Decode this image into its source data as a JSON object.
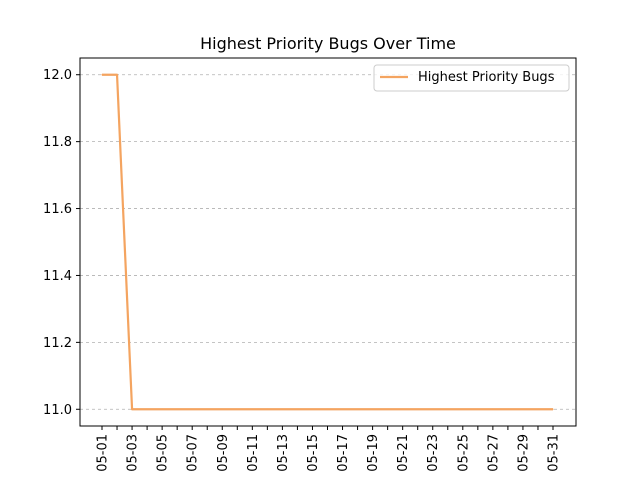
{
  "chart_data": {
    "type": "line",
    "title": "Highest Priority Bugs Over Time",
    "xlabel": "",
    "ylabel": "",
    "x": [
      "05-01",
      "05-02",
      "05-03",
      "05-04",
      "05-05",
      "05-06",
      "05-07",
      "05-08",
      "05-09",
      "05-10",
      "05-11",
      "05-12",
      "05-13",
      "05-14",
      "05-15",
      "05-16",
      "05-17",
      "05-18",
      "05-19",
      "05-20",
      "05-21",
      "05-22",
      "05-23",
      "05-24",
      "05-25",
      "05-26",
      "05-27",
      "05-28",
      "05-29",
      "05-30",
      "05-31"
    ],
    "x_tick_labels": [
      "05-01",
      "05-03",
      "05-05",
      "05-07",
      "05-09",
      "05-11",
      "05-13",
      "05-15",
      "05-17",
      "05-19",
      "05-21",
      "05-23",
      "05-25",
      "05-27",
      "05-29",
      "05-31"
    ],
    "series": [
      {
        "name": "Highest Priority Bugs",
        "color": "#f4a460",
        "values": [
          12,
          12,
          11,
          11,
          11,
          11,
          11,
          11,
          11,
          11,
          11,
          11,
          11,
          11,
          11,
          11,
          11,
          11,
          11,
          11,
          11,
          11,
          11,
          11,
          11,
          11,
          11,
          11,
          11,
          11,
          11
        ]
      }
    ],
    "ylim": [
      10.95,
      12.05
    ],
    "y_ticks": [
      "11.0",
      "11.2",
      "11.4",
      "11.6",
      "11.8",
      "12.0"
    ],
    "grid": "y-dashed",
    "legend": "top-right"
  }
}
